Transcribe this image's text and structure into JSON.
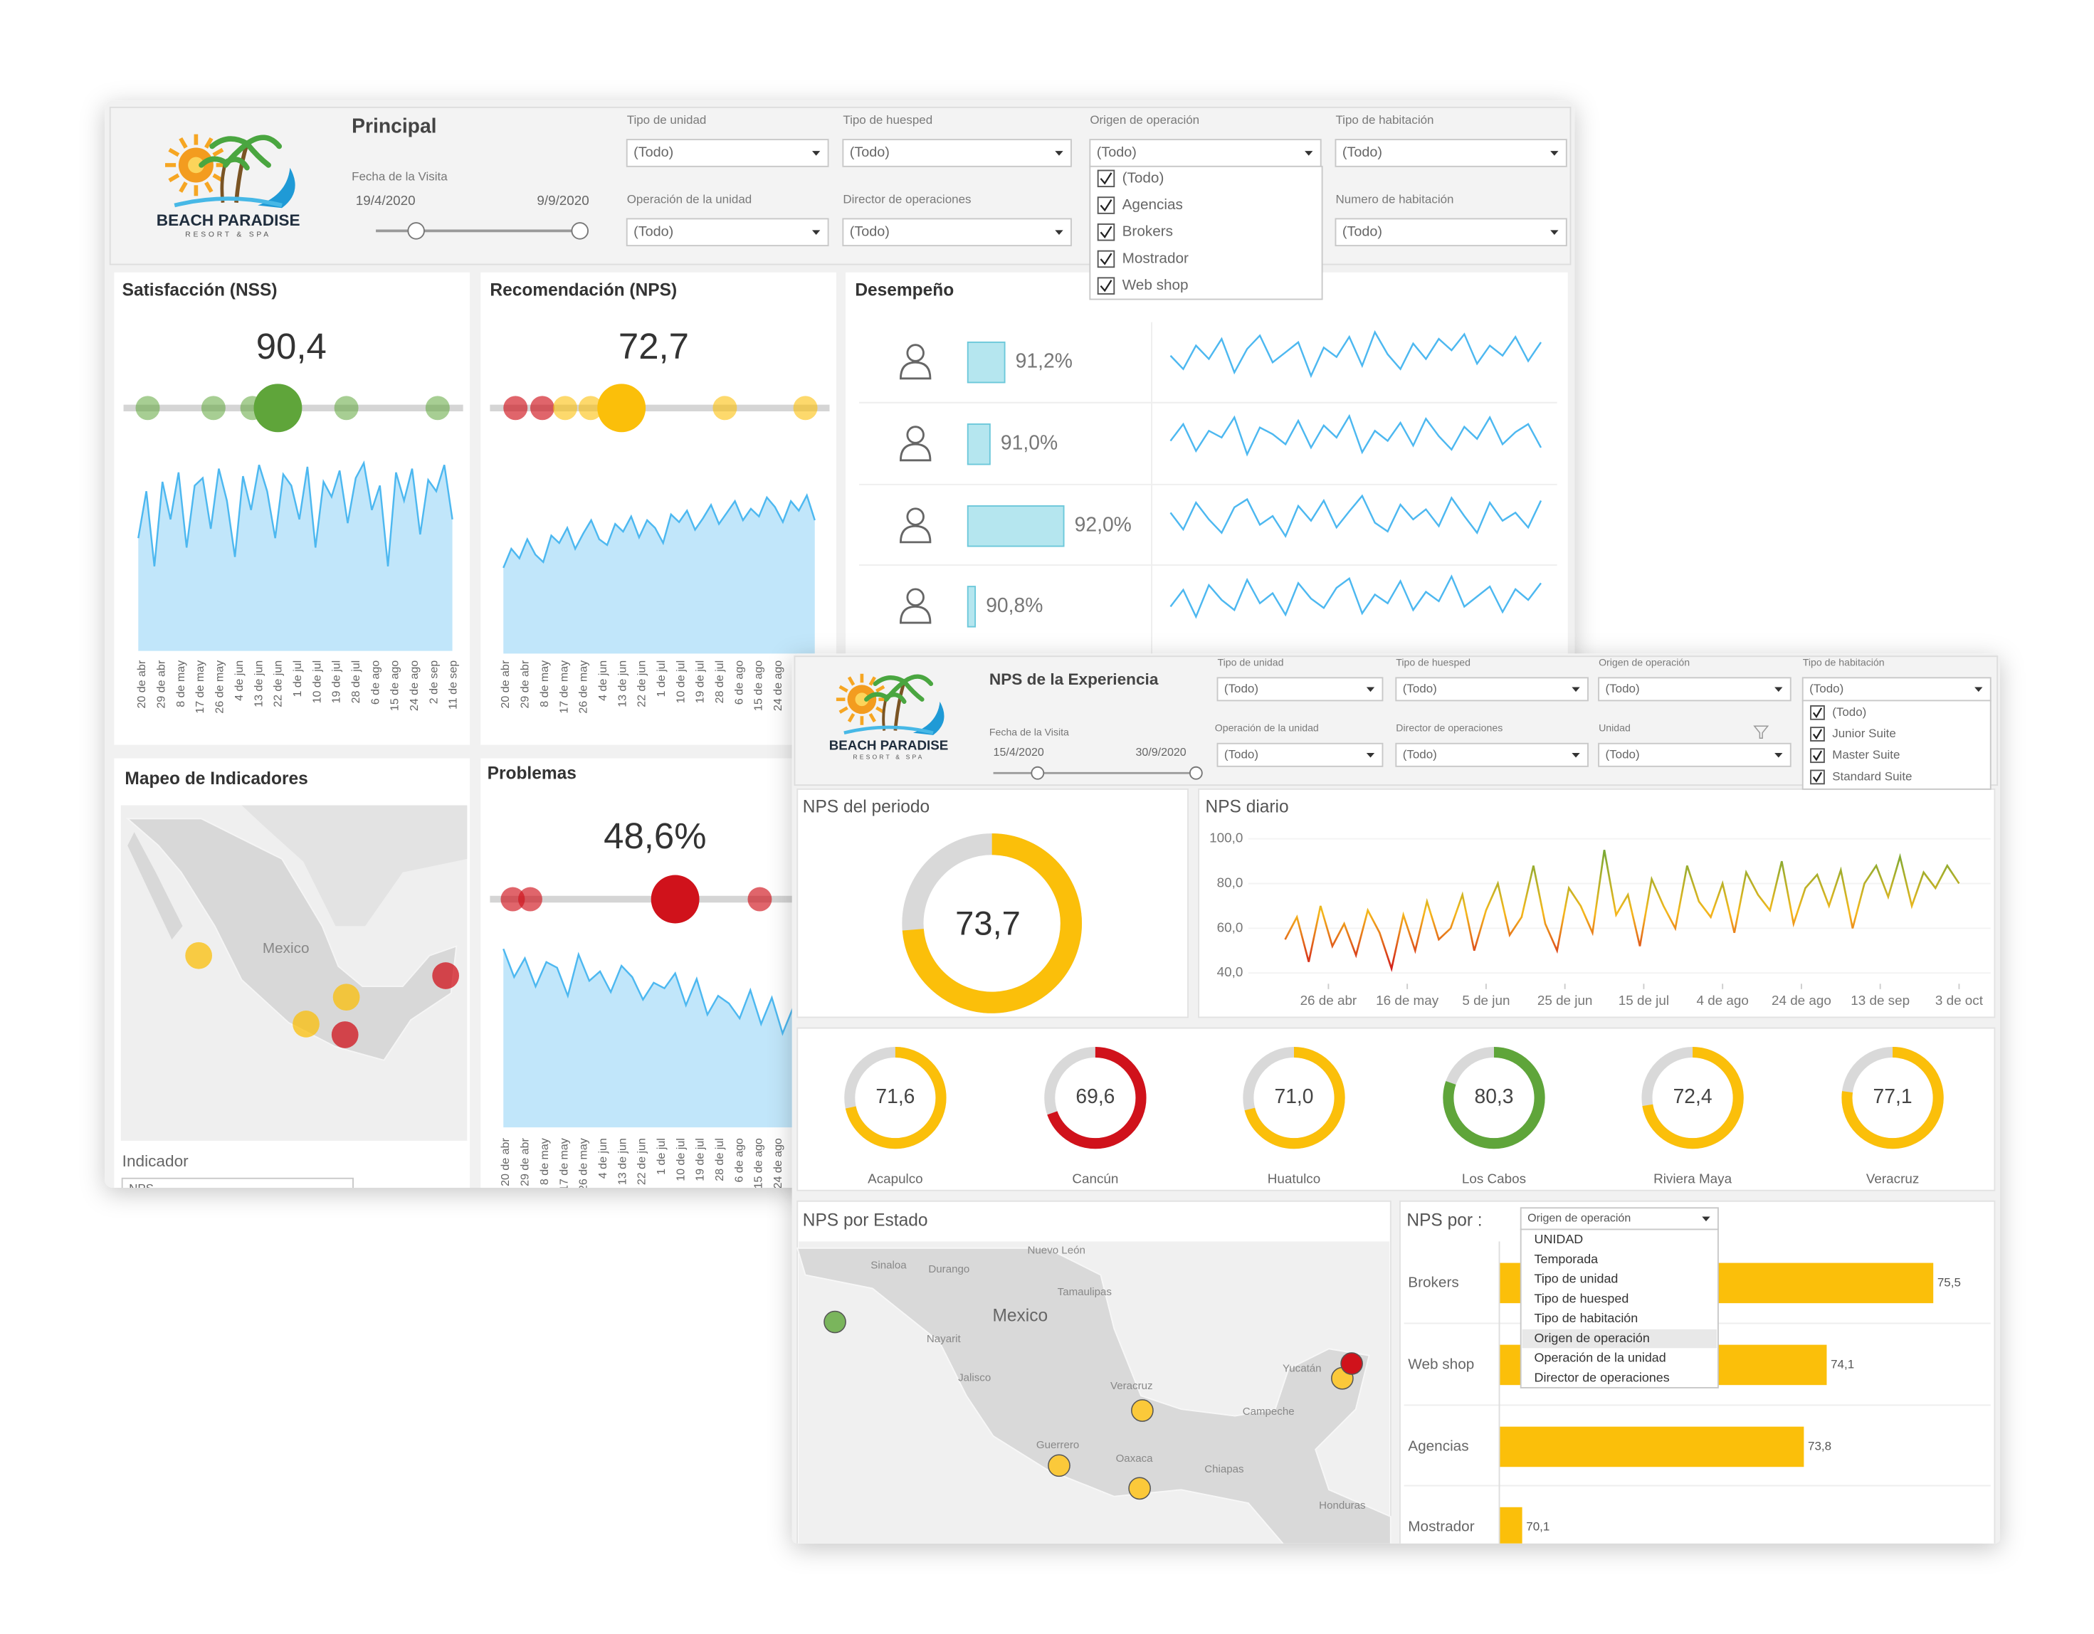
{
  "back": {
    "logo": {
      "name": "BEACH PARADISE",
      "tagline": "RESORT & SPA"
    },
    "title": "Principal",
    "date_filter": {
      "label": "Fecha de la Visita",
      "start": "19/4/2020",
      "end": "9/9/2020"
    },
    "filters": [
      {
        "label": "Tipo de unidad",
        "value": "(Todo)"
      },
      {
        "label": "Tipo de huesped",
        "value": "(Todo)"
      },
      {
        "label": "Origen de operación",
        "value": "(Todo)"
      },
      {
        "label": "Tipo de habitación",
        "value": "(Todo)"
      },
      {
        "label": "Operación de la unidad",
        "value": "(Todo)"
      },
      {
        "label": "Director de operaciones",
        "value": "(Todo)"
      },
      {
        "label": "Numero de habitación",
        "value": "(Todo)"
      }
    ],
    "open_list": [
      "(Todo)",
      "Agencias",
      "Brokers",
      "Mostrador",
      "Web shop"
    ],
    "date_ticks": [
      "20 de abr",
      "29 de abr",
      "8 de may",
      "17 de may",
      "26 de may",
      "4 de jun",
      "13 de jun",
      "22 de jun",
      "1 de jul",
      "10 de jul",
      "19 de jul",
      "28 de jul",
      "6 de ago",
      "15 de ago",
      "24 de ago",
      "2 de sep",
      "11 de sep"
    ],
    "nss": {
      "title": "Satisfacción (NSS)",
      "kpi": "90,4",
      "color": "#4db8f0",
      "ylim": [
        0,
        100
      ],
      "values": [
        60,
        85,
        45,
        90,
        70,
        95,
        55,
        88,
        92,
        65,
        97,
        80,
        50,
        93,
        75,
        99,
        85,
        60,
        94,
        88,
        70,
        98,
        55,
        90,
        82,
        96,
        68,
        92,
        100,
        75,
        88,
        45,
        95,
        80,
        97,
        62,
        91,
        85,
        99,
        70
      ]
    },
    "nps": {
      "title": "Recomendación (NPS)",
      "kpi": "72,7",
      "color": "#4db8f0",
      "ylim": [
        0,
        100
      ],
      "values": [
        45,
        55,
        50,
        60,
        52,
        48,
        62,
        58,
        66,
        55,
        63,
        70,
        60,
        57,
        68,
        64,
        72,
        61,
        70,
        66,
        58,
        73,
        69,
        75,
        65,
        71,
        78,
        68,
        74,
        80,
        70,
        76,
        72,
        82,
        77,
        69,
        80,
        75,
        83,
        70
      ]
    },
    "problems": {
      "title": "Problemas",
      "kpi": "48,6%",
      "color": "#4db8f0",
      "ylim": [
        0,
        100
      ],
      "values": [
        95,
        80,
        90,
        75,
        88,
        85,
        70,
        92,
        78,
        83,
        72,
        86,
        80,
        68,
        77,
        74,
        82,
        65,
        79,
        60,
        70,
        66,
        58,
        73,
        55,
        69,
        50,
        64,
        48,
        58
      ]
    },
    "performance": {
      "title": "Desempeño",
      "xlim": [
        90.7,
        92.3
      ],
      "ylim": [
        0,
        100
      ],
      "bar_color": "#b5e6ef",
      "trend_color": "#4db8f0",
      "rows": [
        {
          "value": 91.2,
          "label": "91,2%",
          "trend": [
            60,
            40,
            75,
            55,
            85,
            35,
            70,
            90,
            50,
            65,
            80,
            30,
            72,
            58,
            88,
            45,
            95,
            62,
            40,
            78,
            55,
            85,
            68,
            92,
            48,
            75,
            60,
            88,
            52,
            80
          ]
        },
        {
          "value": 91.0,
          "label": "91,0%",
          "trend": [
            55,
            80,
            40,
            70,
            60,
            90,
            35,
            75,
            65,
            50,
            85,
            45,
            78,
            60,
            92,
            38,
            70,
            55,
            82,
            48,
            88,
            62,
            42,
            76,
            58,
            90,
            50,
            68,
            80,
            45
          ]
        },
        {
          "value": 92.0,
          "label": "92,0%",
          "trend": [
            70,
            45,
            85,
            60,
            40,
            78,
            90,
            52,
            65,
            35,
            80,
            58,
            88,
            48,
            72,
            95,
            55,
            42,
            82,
            60,
            75,
            50,
            92,
            65,
            40,
            85,
            58,
            70,
            48,
            88
          ]
        },
        {
          "value": 90.8,
          "label": "90,8%",
          "trend": [
            50,
            75,
            35,
            82,
            60,
            45,
            90,
            55,
            70,
            38,
            85,
            62,
            48,
            78,
            92,
            40,
            68,
            55,
            88,
            45,
            72,
            58,
            95,
            50,
            65,
            80,
            42,
            76,
            60,
            85
          ]
        }
      ]
    },
    "map": {
      "title": "Mapeo de Indicadores",
      "labels": [
        "Mexico"
      ],
      "indicator_label": "Indicador",
      "indicator_value": "NPS"
    }
  },
  "front": {
    "logo": {
      "name": "BEACH PARADISE",
      "tagline": "RESORT & SPA"
    },
    "title": "NPS de la Experiencia",
    "date_filter": {
      "label": "Fecha de la Visita",
      "start": "15/4/2020",
      "end": "30/9/2020"
    },
    "filters": [
      {
        "label": "Tipo de unidad",
        "value": "(Todo)"
      },
      {
        "label": "Tipo de huesped",
        "value": "(Todo)"
      },
      {
        "label": "Origen de operación",
        "value": "(Todo)"
      },
      {
        "label": "Tipo de habitación",
        "value": "(Todo)"
      },
      {
        "label": "Operación de la unidad",
        "value": "(Todo)"
      },
      {
        "label": "Director de operaciones",
        "value": "(Todo)"
      },
      {
        "label": "Unidad",
        "value": "(Todo)"
      }
    ],
    "open_list": [
      "(Todo)",
      "Junior Suite",
      "Master Suite",
      "Standard Suite"
    ],
    "period": {
      "title": "NPS del periodo",
      "value": 73.7,
      "label": "73,7",
      "color": "#fbbf0a"
    },
    "daily": {
      "title": "NPS diario",
      "type": "line",
      "ylim": [
        40,
        100
      ],
      "yticks": [
        {
          "value": 40,
          "label": "40,0"
        },
        {
          "value": 60,
          "label": "60,0"
        },
        {
          "value": 80,
          "label": "80,0"
        },
        {
          "value": 100,
          "label": "100,0"
        }
      ],
      "xlim": [
        -10,
        179
      ],
      "xticks": [
        {
          "value": 11,
          "label": "26 de abr"
        },
        {
          "value": 31,
          "label": "16 de may"
        },
        {
          "value": 51,
          "label": "5 de jun"
        },
        {
          "value": 71,
          "label": "25 de jun"
        },
        {
          "value": 91,
          "label": "15 de jul"
        },
        {
          "value": 111,
          "label": "4 de ago"
        },
        {
          "value": 131,
          "label": "24 de ago"
        },
        {
          "value": 151,
          "label": "13 de sep"
        },
        {
          "value": 171,
          "label": "3 de oct"
        }
      ],
      "x": [
        0,
        3,
        6,
        9,
        12,
        15,
        18,
        21,
        24,
        27,
        30,
        33,
        36,
        39,
        42,
        45,
        48,
        51,
        54,
        57,
        60,
        63,
        66,
        69,
        72,
        75,
        78,
        81,
        84,
        87,
        90,
        93,
        96,
        99,
        102,
        105,
        108,
        111,
        114,
        117,
        120,
        123,
        126,
        129,
        132,
        135,
        138,
        141,
        144,
        147,
        150,
        153,
        156,
        159,
        162,
        165,
        168,
        171
      ],
      "values": [
        55,
        65,
        45,
        70,
        52,
        62,
        48,
        68,
        58,
        42,
        66,
        50,
        72,
        55,
        60,
        75,
        50,
        68,
        80,
        57,
        65,
        88,
        62,
        50,
        78,
        70,
        58,
        95,
        66,
        75,
        52,
        82,
        70,
        60,
        88,
        72,
        65,
        80,
        58,
        85,
        75,
        68,
        90,
        62,
        78,
        84,
        70,
        86,
        60,
        80,
        88,
        74,
        92,
        70,
        85,
        78,
        88,
        80
      ]
    },
    "units": [
      {
        "name": "Acapulco",
        "value": 71.6,
        "label": "71,6",
        "color": "#fbbf0a"
      },
      {
        "name": "Cancún",
        "value": 69.6,
        "label": "69,6",
        "color": "#d0121b"
      },
      {
        "name": "Huatulco",
        "value": 71.0,
        "label": "71,0",
        "color": "#fbbf0a"
      },
      {
        "name": "Los Cabos",
        "value": 80.3,
        "label": "80,3",
        "color": "#5fa53a"
      },
      {
        "name": "Riviera Maya",
        "value": 72.4,
        "label": "72,4",
        "color": "#fbbf0a"
      },
      {
        "name": "Veracruz",
        "value": 77.1,
        "label": "77,1",
        "color": "#fbbf0a"
      }
    ],
    "state_map": {
      "title": "NPS por Estado",
      "labels": [
        "Sinaloa",
        "Durango",
        "Nuevo León",
        "Tamaulipas",
        "Mexico",
        "Nayarit",
        "Jalisco",
        "Veracruz",
        "Yucatán",
        "Campeche",
        "Guerrero",
        "Oaxaca",
        "Chiapas",
        "Honduras"
      ]
    },
    "breakdown": {
      "title": "NPS por :",
      "selector": "Origen de operación",
      "options": [
        "UNIDAD",
        "Temporada",
        "Tipo de unidad",
        "Tipo de huesped",
        "Tipo de habitación",
        "Origen de operación",
        "Operación de la unidad",
        "Director de operaciones"
      ],
      "xlim": [
        69.8,
        76.2
      ],
      "categories": [
        "Brokers",
        "Web shop",
        "Agencias",
        "Mostrador"
      ],
      "values": [
        75.5,
        74.1,
        73.8,
        70.1
      ],
      "value_labels": [
        "75,5",
        "74,1",
        "73,8",
        "70,1"
      ],
      "color": "#fbbf0a"
    }
  }
}
